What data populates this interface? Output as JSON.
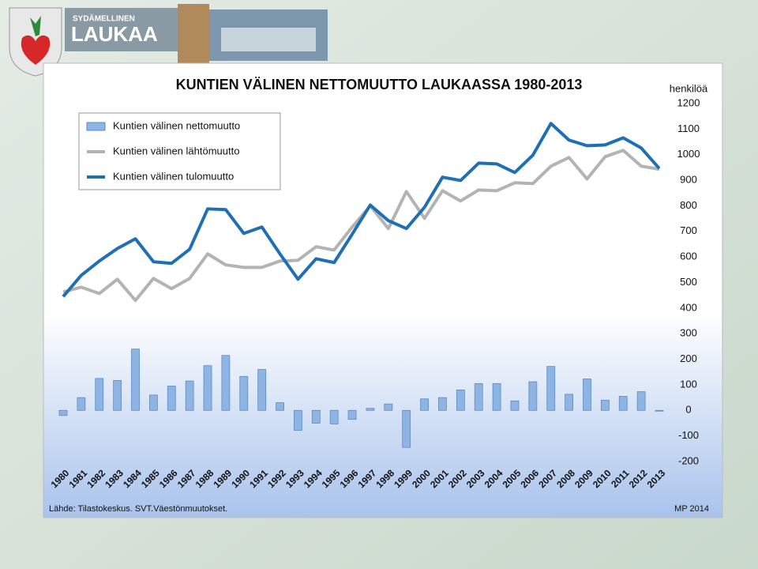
{
  "logo": {
    "tagline": "SYDÄMELLINEN",
    "name": "LAUKAA"
  },
  "chart_data": {
    "type": "bar",
    "title": "KUNTIEN VÄLINEN NETTOMUUTTO LAUKAASSA 1980-2013",
    "y_label": "henkilöä",
    "source": "Lähde: Tilastokeskus. SVT.Väestönmuutokset.",
    "credit": "MP 2014",
    "legend": "upper left",
    "grid": false,
    "ylim": [
      -200,
      1200
    ],
    "yticks": [
      -200,
      -100,
      0,
      100,
      200,
      300,
      400,
      500,
      600,
      700,
      800,
      900,
      1000,
      1100,
      1200
    ],
    "categories": [
      "1980",
      "1981",
      "1982",
      "1983",
      "1984",
      "1985",
      "1986",
      "1987",
      "1988",
      "1989",
      "1990",
      "1991",
      "1992",
      "1993",
      "1994",
      "1995",
      "1996",
      "1997",
      "1998",
      "1999",
      "2000",
      "2001",
      "2002",
      "2003",
      "2004",
      "2005",
      "2006",
      "2007",
      "2008",
      "2009",
      "2010",
      "2011",
      "2012",
      "2013"
    ],
    "series": [
      {
        "name": "Kuntien välinen nettomuutto",
        "type": "bar",
        "color": "#8db4e2",
        "values": [
          -20,
          50,
          125,
          117,
          240,
          60,
          95,
          115,
          175,
          215,
          133,
          160,
          30,
          -78,
          -50,
          -53,
          -35,
          8,
          25,
          -145,
          45,
          50,
          80,
          105,
          105,
          37,
          112,
          172,
          63,
          123,
          40,
          55,
          73,
          -3
        ]
      },
      {
        "name": "Kuntien välinen lähtömuutto",
        "type": "line",
        "color": "#b3b3b3",
        "values": [
          463,
          482,
          457,
          513,
          430,
          516,
          476,
          516,
          612,
          569,
          559,
          559,
          584,
          587,
          640,
          627,
          717,
          800,
          711,
          856,
          751,
          859,
          819,
          862,
          859,
          890,
          887,
          955,
          989,
          905,
          992,
          1017,
          955,
          943
        ]
      },
      {
        "name": "Kuntien välinen tulomuutto",
        "type": "line",
        "color": "#1f6fb5",
        "values": [
          445,
          528,
          584,
          633,
          671,
          581,
          575,
          630,
          788,
          785,
          692,
          717,
          612,
          513,
          593,
          578,
          689,
          803,
          742,
          711,
          794,
          912,
          899,
          967,
          964,
          930,
          998,
          1122,
          1057,
          1035,
          1038,
          1066,
          1026,
          946
        ]
      }
    ]
  }
}
